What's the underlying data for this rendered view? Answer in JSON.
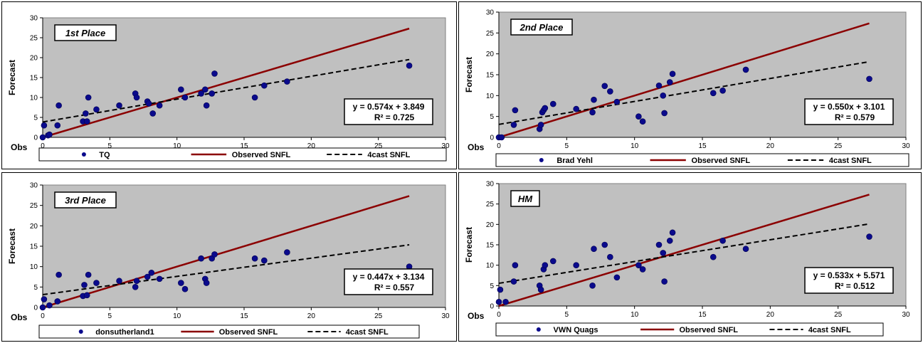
{
  "chart_data": [
    {
      "type": "scatter",
      "panel_label": "1st Place",
      "xlabel": "Obs",
      "ylabel": "Forecast",
      "xlim": [
        0,
        30
      ],
      "ylim": [
        0,
        30
      ],
      "xticks": [
        0,
        5,
        10,
        15,
        20,
        25,
        30
      ],
      "yticks": [
        0,
        5,
        10,
        15,
        20,
        25,
        30
      ],
      "grid": false,
      "legend_position": "bottom",
      "equation": "y = 0.574x + 3.849",
      "r2": "R² = 0.725",
      "series": [
        {
          "name": "TQ",
          "kind": "scatter",
          "color": "#0a0a8c",
          "x": [
            0,
            0.1,
            0.4,
            0.5,
            1.1,
            1.2,
            3.0,
            3.2,
            3.3,
            3.4,
            4.0,
            5.7,
            6.9,
            7.0,
            7.8,
            7.9,
            8.2,
            8.7,
            10.3,
            10.6,
            11.8,
            12.1,
            12.2,
            12.6,
            12.8,
            15.8,
            16.5,
            18.2,
            27.3
          ],
          "y": [
            0,
            3,
            0.5,
            0.7,
            3,
            8,
            4,
            6,
            4,
            10,
            7,
            8,
            11,
            10,
            9,
            8.5,
            6,
            8,
            12,
            10,
            11,
            12,
            8,
            11,
            16,
            10,
            13,
            14,
            18
          ]
        },
        {
          "name": "Observed SNFL",
          "kind": "line",
          "color": "#8b0000",
          "x": [
            0,
            27.3
          ],
          "y": [
            0,
            27.3
          ]
        },
        {
          "name": "4cast SNFL",
          "kind": "dashed",
          "color": "#000000",
          "x": [
            0,
            27.3
          ],
          "y": [
            3.849,
            19.52
          ]
        }
      ]
    },
    {
      "type": "scatter",
      "panel_label": "2nd Place",
      "xlabel": "Obs",
      "ylabel": "Forecast",
      "xlim": [
        0,
        30
      ],
      "ylim": [
        0,
        30
      ],
      "xticks": [
        0,
        5,
        10,
        15,
        20,
        25,
        30
      ],
      "yticks": [
        0,
        5,
        10,
        15,
        20,
        25,
        30
      ],
      "grid": false,
      "legend_position": "bottom",
      "equation": "y = 0.550x + 3.101",
      "r2": "R² = 0.579",
      "series": [
        {
          "name": "Brad Yehl",
          "kind": "scatter",
          "color": "#0a0a8c",
          "x": [
            0,
            0.2,
            1.1,
            1.2,
            3.0,
            3.1,
            3.2,
            3.3,
            3.4,
            4.0,
            5.7,
            6.9,
            7.0,
            7.8,
            8.2,
            8.7,
            10.3,
            10.6,
            11.8,
            12.1,
            12.2,
            12.6,
            12.8,
            15.8,
            16.5,
            18.2,
            27.3
          ],
          "y": [
            0,
            0,
            3,
            6.5,
            2,
            3,
            6,
            6.5,
            7,
            8,
            6.8,
            6,
            9,
            12.3,
            11,
            8.5,
            5,
            3.8,
            12.4,
            10,
            5.8,
            13.2,
            15.2,
            10.6,
            11.2,
            16.2,
            14
          ]
        },
        {
          "name": "Observed SNFL",
          "kind": "line",
          "color": "#8b0000",
          "x": [
            0,
            27.3
          ],
          "y": [
            0,
            27.3
          ]
        },
        {
          "name": "4cast SNFL",
          "kind": "dashed",
          "color": "#000000",
          "x": [
            0,
            27.3
          ],
          "y": [
            3.101,
            18.12
          ]
        }
      ]
    },
    {
      "type": "scatter",
      "panel_label": "3rd Place",
      "xlabel": "Obs",
      "ylabel": "Forecast",
      "xlim": [
        0,
        30
      ],
      "ylim": [
        0,
        30
      ],
      "xticks": [
        0,
        5,
        10,
        15,
        20,
        25,
        30
      ],
      "yticks": [
        0,
        5,
        10,
        15,
        20,
        25,
        30
      ],
      "grid": false,
      "legend_position": "bottom",
      "equation": "y = 0.447x + 3.134",
      "r2": "R² = 0.557",
      "series": [
        {
          "name": "donsutherland1",
          "kind": "scatter",
          "color": "#0a0a8c",
          "x": [
            0,
            0.1,
            0.5,
            1.1,
            1.2,
            3.0,
            3.1,
            3.3,
            3.4,
            4.0,
            5.7,
            6.9,
            7.0,
            7.8,
            8.1,
            8.7,
            10.3,
            10.6,
            11.8,
            12.1,
            12.2,
            12.6,
            12.8,
            15.8,
            16.5,
            18.2,
            27.3
          ],
          "y": [
            0,
            2,
            0.5,
            1.5,
            8,
            2.8,
            5.5,
            3,
            8,
            6,
            6.5,
            5,
            6.5,
            7.5,
            8.5,
            7,
            6,
            4.5,
            12,
            7,
            6,
            12,
            13,
            12,
            11.5,
            13.5,
            10
          ]
        },
        {
          "name": "Observed SNFL",
          "kind": "line",
          "color": "#8b0000",
          "x": [
            0,
            27.3
          ],
          "y": [
            0,
            27.3
          ]
        },
        {
          "name": "4cast SNFL",
          "kind": "dashed",
          "color": "#000000",
          "x": [
            0,
            27.3
          ],
          "y": [
            3.134,
            15.34
          ]
        }
      ]
    },
    {
      "type": "scatter",
      "panel_label": "HM",
      "xlabel": "Obs",
      "ylabel": "Forecast",
      "xlim": [
        0,
        30
      ],
      "ylim": [
        0,
        30
      ],
      "xticks": [
        0,
        5,
        10,
        15,
        20,
        25,
        30
      ],
      "yticks": [
        0,
        5,
        10,
        15,
        20,
        25,
        30
      ],
      "grid": false,
      "legend_position": "bottom",
      "equation": "y = 0.533x + 5.571",
      "r2": "R² = 0.512",
      "series": [
        {
          "name": "VWN Quags",
          "kind": "scatter",
          "color": "#0a0a8c",
          "x": [
            0,
            0.1,
            0.5,
            1.1,
            1.2,
            3.0,
            3.1,
            3.3,
            3.4,
            4.0,
            5.7,
            6.9,
            7.0,
            7.8,
            8.2,
            8.7,
            10.3,
            10.6,
            11.8,
            12.1,
            12.2,
            12.6,
            12.8,
            15.8,
            16.5,
            18.2,
            27.3
          ],
          "y": [
            1,
            4,
            1,
            6,
            10,
            5,
            4,
            9,
            10,
            11,
            10,
            5,
            14,
            15,
            12,
            7,
            10,
            9,
            15,
            13,
            6,
            16,
            18,
            12,
            16,
            14,
            17
          ]
        },
        {
          "name": "Observed SNFL",
          "kind": "line",
          "color": "#8b0000",
          "x": [
            0,
            27.3
          ],
          "y": [
            0,
            27.3
          ]
        },
        {
          "name": "4cast SNFL",
          "kind": "dashed",
          "color": "#000000",
          "x": [
            0,
            27.3
          ],
          "y": [
            5.571,
            20.12
          ]
        }
      ]
    }
  ]
}
